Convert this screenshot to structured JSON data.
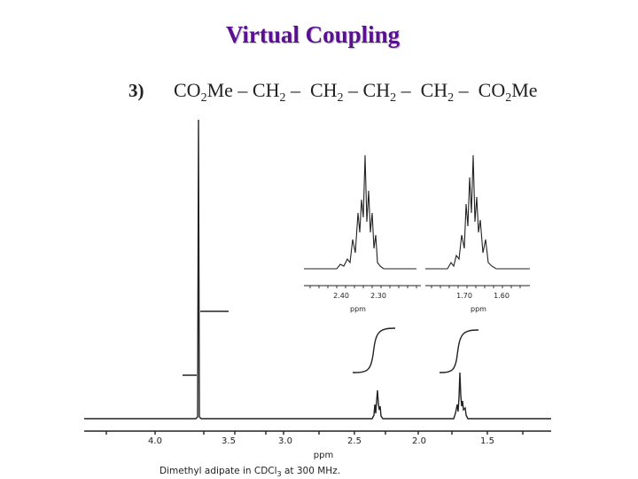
{
  "header": {
    "title": "Virtual Coupling"
  },
  "item": {
    "number": "3)",
    "formula": [
      "CO",
      "2",
      "Me – CH",
      "2",
      " –  CH",
      "2",
      " – CH",
      "2",
      " –  CH",
      "2",
      " –  CO",
      "2",
      "Me"
    ]
  },
  "spectrum": {
    "axis_labels": [
      "4.0",
      "3.5",
      "3.0",
      "2.5",
      "2.0",
      "1.5"
    ],
    "axis_title": "ppm",
    "caption": [
      "Dimethyl adipate in CDCl",
      "3",
      " at 300 MHz."
    ],
    "insets": [
      {
        "labels": [
          "2.40",
          "2.30"
        ],
        "axis_title": "ppm"
      },
      {
        "labels": [
          "1.70",
          "1.60"
        ],
        "axis_title": "ppm"
      }
    ]
  }
}
